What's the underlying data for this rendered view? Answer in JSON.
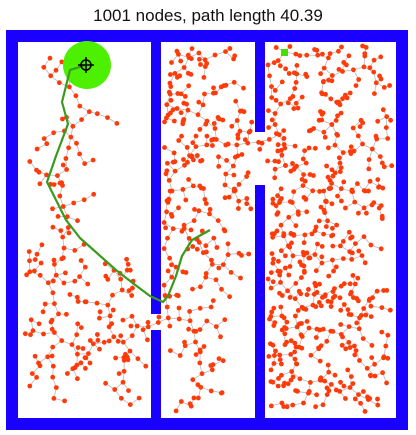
{
  "title": "1001 nodes, path length 40.39",
  "colors": {
    "wall": "#1a00ff",
    "node": "#ff3b0a",
    "edge": "#b8b8b8",
    "path": "#3a9a1e",
    "goal_region": "#4cf000",
    "start": "#44e000",
    "marker": "#000000"
  }
}
